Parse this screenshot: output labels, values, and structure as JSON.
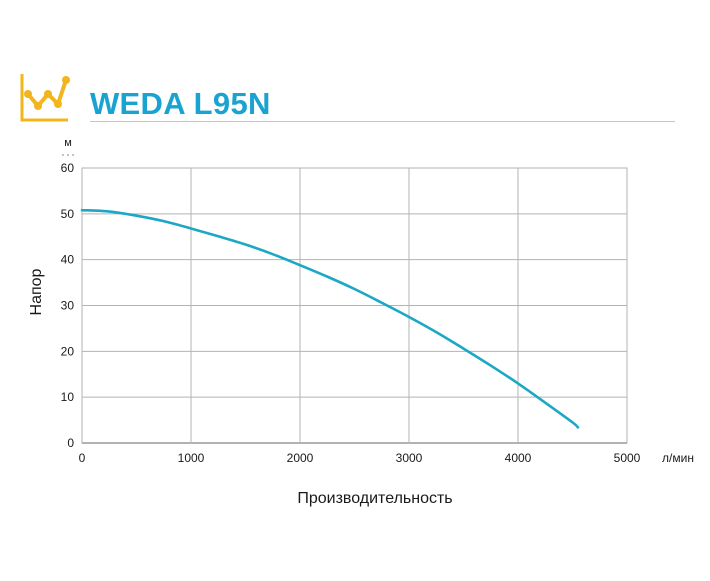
{
  "header": {
    "icon": "chart-trend-icon",
    "title": "WEDA L95N",
    "accent_color": "#19a3d1",
    "icon_color": "#f2b51c"
  },
  "chart_data": {
    "type": "line",
    "title": "WEDA L95N",
    "xlabel": "Производительность",
    "ylabel": "Напор",
    "x_unit": "л/мин",
    "y_unit": "м",
    "xlim": [
      0,
      5000
    ],
    "ylim": [
      0,
      60
    ],
    "x_ticks": [
      0,
      1000,
      2000,
      3000,
      4000,
      5000
    ],
    "y_ticks": [
      0,
      10,
      20,
      30,
      40,
      50,
      60
    ],
    "grid": true,
    "line_color": "#1aa8c4",
    "series": [
      {
        "x": [
          0,
          250,
          500,
          750,
          1000,
          1250,
          1500,
          1750,
          2000,
          2250,
          2500,
          2750,
          3000,
          3250,
          3500,
          3750,
          4000,
          4250,
          4500,
          4550
        ],
        "y": [
          50.8,
          50.5,
          49.6,
          48.4,
          46.8,
          45.1,
          43.3,
          41.2,
          38.8,
          36.3,
          33.6,
          30.6,
          27.5,
          24.2,
          20.6,
          16.9,
          13.0,
          8.8,
          4.5,
          3.4
        ]
      }
    ]
  }
}
